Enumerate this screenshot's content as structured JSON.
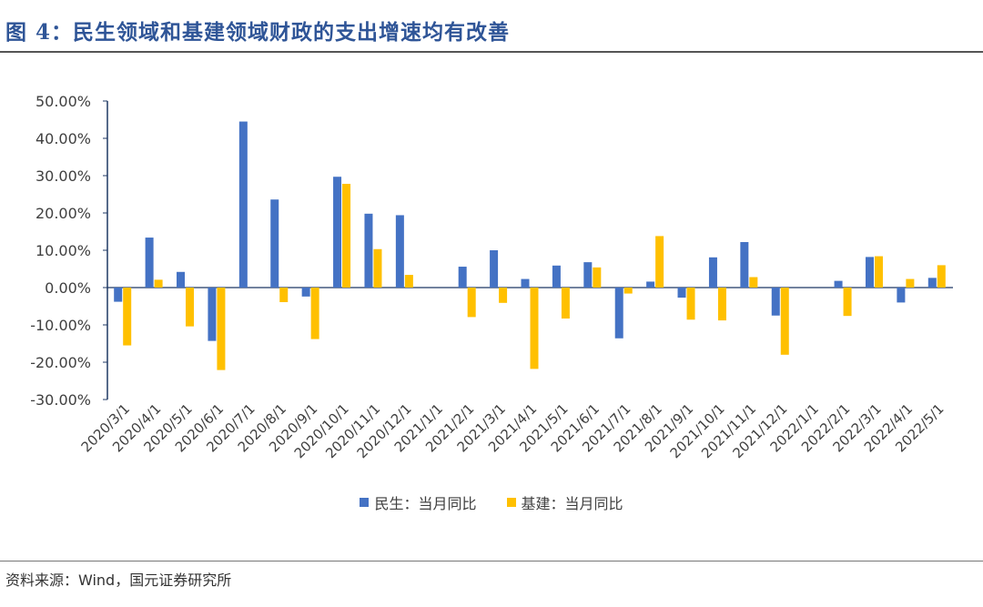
{
  "header": {
    "title": "图 4：民生领域和基建领域财政的支出增速均有改善"
  },
  "footer": {
    "source": "资料来源：Wind，国元证券研究所"
  },
  "colors": {
    "series1": "#4472C4",
    "series2": "#FFC000",
    "axis": "#1F3864",
    "text": "#404040"
  },
  "chart_data": {
    "type": "bar",
    "categories": [
      "2020/3/1",
      "2020/4/1",
      "2020/5/1",
      "2020/6/1",
      "2020/7/1",
      "2020/8/1",
      "2020/9/1",
      "2020/10/1",
      "2020/11/1",
      "2020/12/1",
      "2021/1/1",
      "2021/2/1",
      "2021/3/1",
      "2021/4/1",
      "2021/5/1",
      "2021/6/1",
      "2021/7/1",
      "2021/8/1",
      "2021/9/1",
      "2021/10/1",
      "2021/11/1",
      "2021/12/1",
      "2022/1/1",
      "2022/2/1",
      "2022/3/1",
      "2022/4/1",
      "2022/5/1"
    ],
    "series": [
      {
        "name": "民生：当月同比",
        "values": [
          -3.8,
          13.4,
          4.2,
          -14.3,
          44.5,
          23.6,
          -2.4,
          29.7,
          19.8,
          19.4,
          null,
          5.6,
          10.0,
          2.3,
          5.9,
          6.8,
          -13.6,
          1.6,
          -2.7,
          8.1,
          12.2,
          -7.5,
          null,
          1.8,
          8.2,
          -4.0,
          2.6
        ]
      },
      {
        "name": "基建：当月同比",
        "values": [
          -15.5,
          2.1,
          -10.4,
          -22.1,
          null,
          -3.9,
          -13.8,
          27.8,
          10.3,
          3.4,
          null,
          -7.9,
          -4.1,
          -21.8,
          -8.3,
          5.4,
          -1.6,
          13.8,
          -8.6,
          -8.8,
          2.8,
          -18.0,
          null,
          -7.6,
          8.4,
          2.3,
          6.0
        ]
      }
    ],
    "ylim": [
      -30,
      50
    ],
    "yticks": [
      "50.00%",
      "40.00%",
      "30.00%",
      "20.00%",
      "10.00%",
      "0.00%",
      "-10.00%",
      "-20.00%",
      "-30.00%"
    ],
    "grid": false,
    "legend": "bottom"
  }
}
